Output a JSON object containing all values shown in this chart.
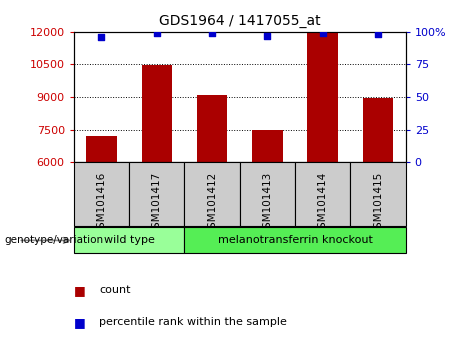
{
  "title": "GDS1964 / 1417055_at",
  "samples": [
    "GSM101416",
    "GSM101417",
    "GSM101412",
    "GSM101413",
    "GSM101414",
    "GSM101415"
  ],
  "counts": [
    7200,
    10480,
    9100,
    7480,
    11950,
    8950
  ],
  "percentile_ranks": [
    96,
    99,
    99,
    97,
    99,
    98
  ],
  "ylim_left": [
    6000,
    12000
  ],
  "ylim_right": [
    0,
    100
  ],
  "yticks_left": [
    6000,
    7500,
    9000,
    10500,
    12000
  ],
  "yticks_right": [
    0,
    25,
    50,
    75,
    100
  ],
  "ytick_labels_right": [
    "0",
    "25",
    "50",
    "75",
    "100%"
  ],
  "bar_color": "#AA0000",
  "dot_color": "#0000CC",
  "bar_width": 0.55,
  "groups": [
    {
      "label": "wild type",
      "indices": [
        0,
        1
      ],
      "color": "#99FF99"
    },
    {
      "label": "melanotransferrin knockout",
      "indices": [
        2,
        3,
        4,
        5
      ],
      "color": "#55EE55"
    }
  ],
  "group_label_prefix": "genotype/variation",
  "legend_count_label": "count",
  "legend_percentile_label": "percentile rank within the sample",
  "plot_bg": "#FFFFFF",
  "tick_color_left": "#CC0000",
  "tick_color_right": "#0000CC",
  "grid_color": "#000000",
  "sample_cell_color": "#CCCCCC",
  "figsize": [
    4.61,
    3.54
  ],
  "dpi": 100
}
